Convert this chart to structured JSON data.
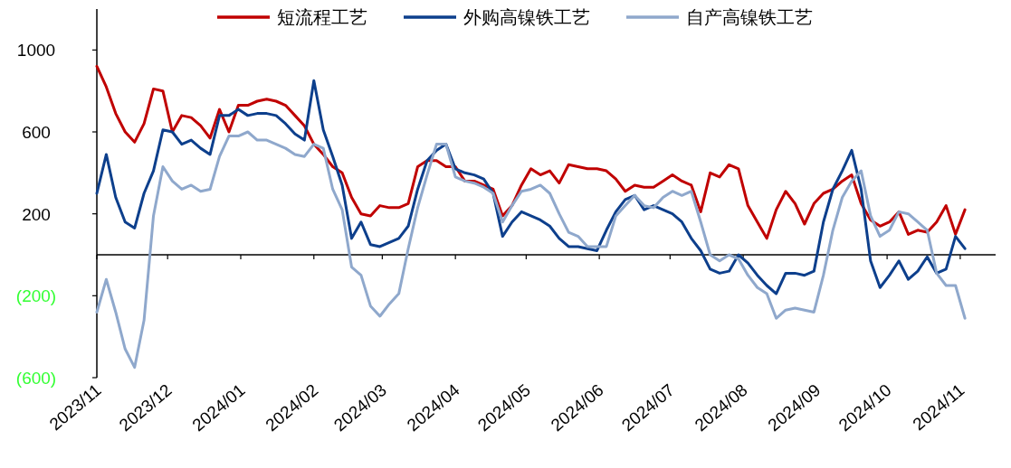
{
  "chart_data": {
    "type": "line",
    "legend": "top",
    "grid": false,
    "marker": "none",
    "line_style": "solid",
    "x": [
      "2023-11-01",
      "2023-11-05",
      "2023-11-09",
      "2023-11-13",
      "2023-11-17",
      "2023-11-21",
      "2023-11-25",
      "2023-11-29",
      "2023-12-03",
      "2023-12-07",
      "2023-12-11",
      "2023-12-15",
      "2023-12-19",
      "2023-12-23",
      "2023-12-27",
      "2023-12-31",
      "2024-01-04",
      "2024-01-08",
      "2024-01-12",
      "2024-01-16",
      "2024-01-20",
      "2024-01-24",
      "2024-01-28",
      "2024-02-01",
      "2024-02-05",
      "2024-02-09",
      "2024-02-13",
      "2024-02-17",
      "2024-02-21",
      "2024-02-25",
      "2024-02-29",
      "2024-03-04",
      "2024-03-08",
      "2024-03-12",
      "2024-03-16",
      "2024-03-20",
      "2024-03-24",
      "2024-03-28",
      "2024-04-01",
      "2024-04-05",
      "2024-04-09",
      "2024-04-13",
      "2024-04-17",
      "2024-04-21",
      "2024-04-25",
      "2024-04-29",
      "2024-05-03",
      "2024-05-07",
      "2024-05-11",
      "2024-05-15",
      "2024-05-19",
      "2024-05-23",
      "2024-05-27",
      "2024-05-31",
      "2024-06-04",
      "2024-06-08",
      "2024-06-12",
      "2024-06-16",
      "2024-06-20",
      "2024-06-24",
      "2024-06-28",
      "2024-07-02",
      "2024-07-06",
      "2024-07-10",
      "2024-07-14",
      "2024-07-18",
      "2024-07-22",
      "2024-07-26",
      "2024-07-30",
      "2024-08-03",
      "2024-08-07",
      "2024-08-11",
      "2024-08-15",
      "2024-08-19",
      "2024-08-23",
      "2024-08-27",
      "2024-08-31",
      "2024-09-04",
      "2024-09-08",
      "2024-09-12",
      "2024-09-16",
      "2024-09-20",
      "2024-09-24",
      "2024-09-28",
      "2024-10-02",
      "2024-10-06",
      "2024-10-10",
      "2024-10-14",
      "2024-10-18",
      "2024-10-22",
      "2024-10-26",
      "2024-10-30",
      "2024-11-03"
    ],
    "series": [
      {
        "name": "短流程工艺",
        "color": "#c00000",
        "values": [
          920,
          820,
          690,
          600,
          550,
          640,
          810,
          800,
          600,
          680,
          670,
          630,
          570,
          710,
          600,
          730,
          730,
          750,
          760,
          750,
          730,
          680,
          630,
          540,
          490,
          430,
          400,
          280,
          200,
          190,
          240,
          230,
          230,
          250,
          430,
          460,
          460,
          430,
          430,
          360,
          360,
          340,
          320,
          190,
          240,
          340,
          420,
          390,
          410,
          350,
          440,
          430,
          420,
          420,
          410,
          370,
          310,
          340,
          330,
          330,
          360,
          390,
          360,
          340,
          210,
          400,
          380,
          440,
          420,
          240,
          160,
          80,
          220,
          310,
          250,
          150,
          250,
          300,
          320,
          360,
          390,
          250,
          170,
          140,
          160,
          210,
          100,
          120,
          110,
          160,
          240,
          100,
          220
        ]
      },
      {
        "name": "外购高镍铁工艺",
        "color": "#0d3f8c",
        "values": [
          300,
          490,
          280,
          160,
          130,
          300,
          410,
          610,
          600,
          540,
          560,
          520,
          490,
          680,
          680,
          710,
          680,
          690,
          690,
          680,
          640,
          590,
          560,
          850,
          610,
          480,
          340,
          80,
          160,
          50,
          40,
          60,
          80,
          140,
          320,
          460,
          510,
          540,
          420,
          400,
          390,
          370,
          300,
          90,
          160,
          210,
          190,
          170,
          140,
          80,
          40,
          40,
          30,
          20,
          120,
          210,
          270,
          290,
          220,
          240,
          220,
          200,
          160,
          80,
          20,
          -70,
          -90,
          -80,
          0,
          -40,
          -100,
          -150,
          -190,
          -90,
          -90,
          -100,
          -80,
          160,
          320,
          410,
          510,
          320,
          -30,
          -160,
          -100,
          -30,
          -120,
          -80,
          -10,
          -90,
          -70,
          90,
          30
        ]
      },
      {
        "name": "自产高镍铁工艺",
        "color": "#8fa8cc",
        "values": [
          -280,
          -120,
          -280,
          -460,
          -550,
          -320,
          190,
          430,
          360,
          320,
          340,
          310,
          320,
          480,
          580,
          580,
          600,
          560,
          560,
          540,
          520,
          490,
          480,
          540,
          520,
          320,
          220,
          -60,
          -100,
          -250,
          -300,
          -240,
          -190,
          30,
          230,
          390,
          540,
          540,
          380,
          360,
          350,
          330,
          300,
          160,
          240,
          310,
          320,
          340,
          300,
          200,
          110,
          90,
          40,
          40,
          40,
          190,
          240,
          290,
          240,
          230,
          280,
          310,
          290,
          310,
          160,
          0,
          -30,
          0,
          -20,
          -100,
          -160,
          -190,
          -310,
          -270,
          -260,
          -270,
          -280,
          -100,
          120,
          280,
          360,
          410,
          190,
          90,
          120,
          210,
          200,
          160,
          120,
          -90,
          -150,
          -150,
          -310
        ]
      }
    ],
    "xlim": [
      "2023-11-01",
      "2024-11-16"
    ],
    "xticks": [
      {
        "value": "2023-11-01",
        "label": "2023/11"
      },
      {
        "value": "2023-12-01",
        "label": "2023/12"
      },
      {
        "value": "2024-01-01",
        "label": "2024/01"
      },
      {
        "value": "2024-02-01",
        "label": "2024/02"
      },
      {
        "value": "2024-03-01",
        "label": "2024/03"
      },
      {
        "value": "2024-04-01",
        "label": "2024/04"
      },
      {
        "value": "2024-05-01",
        "label": "2024/05"
      },
      {
        "value": "2024-06-01",
        "label": "2024/06"
      },
      {
        "value": "2024-07-01",
        "label": "2024/07"
      },
      {
        "value": "2024-08-01",
        "label": "2024/08"
      },
      {
        "value": "2024-09-01",
        "label": "2024/09"
      },
      {
        "value": "2024-10-01",
        "label": "2024/10"
      },
      {
        "value": "2024-11-01",
        "label": "2024/11"
      }
    ],
    "ylim": [
      -600,
      1200
    ],
    "yticks": [
      {
        "value": -600,
        "label": "(600)"
      },
      {
        "value": -200,
        "label": "(200)"
      },
      200,
      600,
      1000
    ]
  }
}
